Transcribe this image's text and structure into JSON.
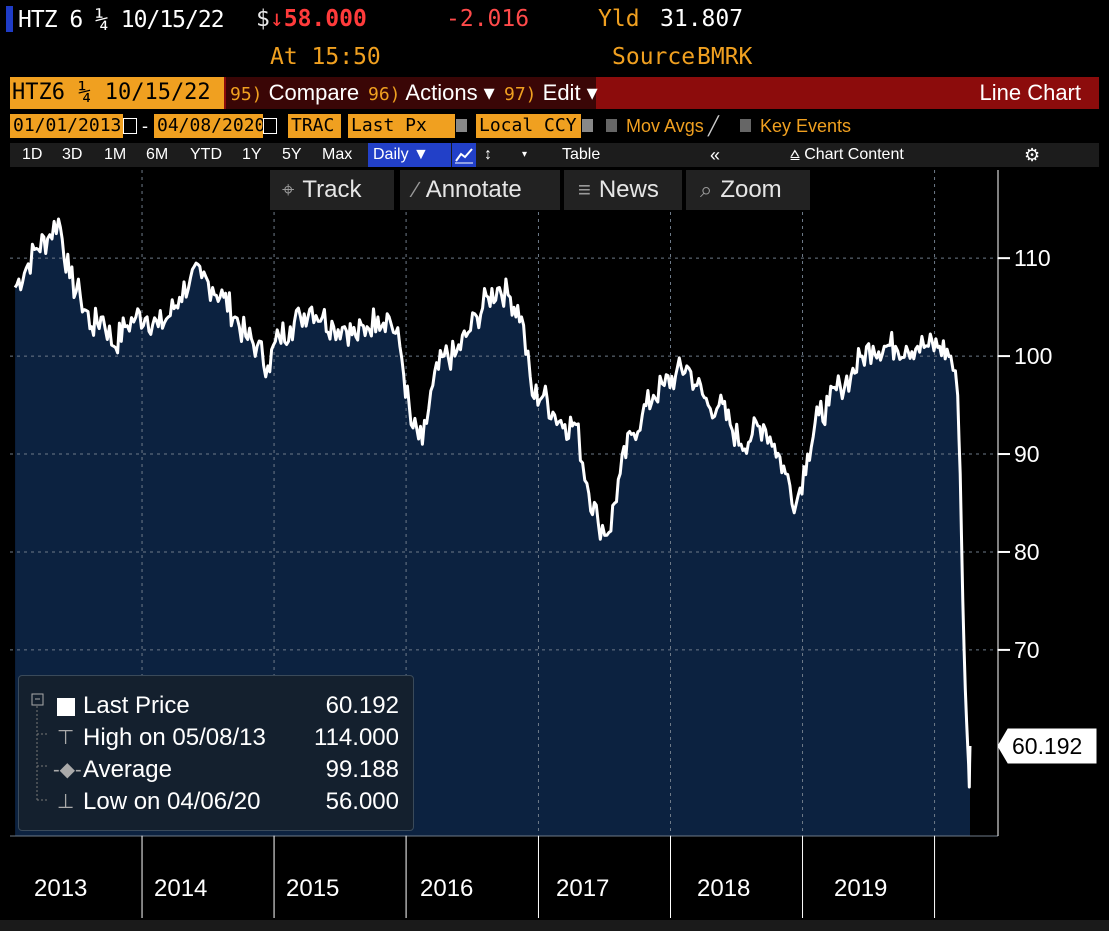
{
  "header": {
    "ticker": "HTZ 6 ¼ 10/15/22",
    "price_prefix": "$",
    "price_arrow": "↓",
    "price": "58.000",
    "change": "-2.016",
    "yld_label": "Yld",
    "yld": "31.807",
    "time": "At 15:50",
    "source_label": "Source",
    "source": "BMRK"
  },
  "toolbar": {
    "security": "HTZ6 ¼ 10/15/22 (",
    "compare_num": "95)",
    "compare": "Compare",
    "actions_num": "96)",
    "actions": "Actions ▾",
    "edit_num": "97)",
    "edit": "Edit ▾",
    "chart_title": "Line Chart"
  },
  "settings": {
    "start_date": "01/01/2013",
    "dash": "-",
    "end_date": "04/08/2020",
    "trac": "TRAC",
    "field": "Last Px",
    "currency": "Local CCY",
    "mov_avgs": "Mov Avgs",
    "key_events": "Key Events"
  },
  "periods": {
    "items": [
      "1D",
      "3D",
      "1M",
      "6M",
      "YTD",
      "1Y",
      "5Y",
      "Max"
    ],
    "daily": "Daily ▼",
    "table": "Table",
    "collapse": "«",
    "chart_content": "Chart Content",
    "gear": "⚙"
  },
  "tools": {
    "track": "Track",
    "annotate": "Annotate",
    "news": "News",
    "zoom": "Zoom"
  },
  "legend": {
    "last_label": "Last Price",
    "last_value": "60.192",
    "high_label": "High on 05/08/13",
    "high_value": "114.000",
    "avg_label": "Average",
    "avg_value": "99.188",
    "low_label": "Low on 04/06/20",
    "low_value": "56.000"
  },
  "colors": {
    "background": "#000000",
    "area_fill": "#0c2240",
    "line": "#ffffff",
    "accent_orange": "#f0a020",
    "toolbar_red": "#8c0c0c",
    "negative": "#ff3b3b"
  },
  "chart_data": {
    "type": "area",
    "title": "",
    "xlabel": "",
    "ylabel": "",
    "x_tick_labels": [
      "2013",
      "2014",
      "2015",
      "2016",
      "2017",
      "2018",
      "2019"
    ],
    "y_ticks": [
      70,
      80,
      90,
      100,
      110
    ],
    "ylim": [
      51,
      119
    ],
    "last_value_label": "60.192",
    "grid": true,
    "legend_position": "bottom-left",
    "series": [
      {
        "values": [
          {
            "x": "2013-01",
            "y": 107
          },
          {
            "x": "2013-02",
            "y": 109
          },
          {
            "x": "2013-03",
            "y": 111
          },
          {
            "x": "2013-04",
            "y": 112
          },
          {
            "x": "2013-05",
            "y": 114
          },
          {
            "x": "2013-06",
            "y": 108
          },
          {
            "x": "2013-07",
            "y": 106
          },
          {
            "x": "2013-08",
            "y": 103
          },
          {
            "x": "2013-09",
            "y": 104
          },
          {
            "x": "2013-10",
            "y": 101
          },
          {
            "x": "2013-11",
            "y": 103
          },
          {
            "x": "2013-12",
            "y": 104
          },
          {
            "x": "2014-01",
            "y": 104
          },
          {
            "x": "2014-02",
            "y": 103
          },
          {
            "x": "2014-03",
            "y": 104
          },
          {
            "x": "2014-04",
            "y": 106
          },
          {
            "x": "2014-05",
            "y": 108
          },
          {
            "x": "2014-06",
            "y": 108
          },
          {
            "x": "2014-07",
            "y": 107
          },
          {
            "x": "2014-08",
            "y": 106
          },
          {
            "x": "2014-09",
            "y": 104
          },
          {
            "x": "2014-10",
            "y": 102
          },
          {
            "x": "2014-11",
            "y": 101
          },
          {
            "x": "2014-12",
            "y": 99
          },
          {
            "x": "2015-01",
            "y": 102
          },
          {
            "x": "2015-02",
            "y": 103
          },
          {
            "x": "2015-03",
            "y": 104
          },
          {
            "x": "2015-04",
            "y": 105
          },
          {
            "x": "2015-05",
            "y": 104
          },
          {
            "x": "2015-06",
            "y": 103
          },
          {
            "x": "2015-07",
            "y": 103
          },
          {
            "x": "2015-08",
            "y": 102
          },
          {
            "x": "2015-09",
            "y": 103
          },
          {
            "x": "2015-10",
            "y": 104
          },
          {
            "x": "2015-11",
            "y": 104
          },
          {
            "x": "2015-12",
            "y": 101
          },
          {
            "x": "2016-01",
            "y": 93
          },
          {
            "x": "2016-02",
            "y": 91
          },
          {
            "x": "2016-03",
            "y": 97
          },
          {
            "x": "2016-04",
            "y": 100
          },
          {
            "x": "2016-05",
            "y": 100
          },
          {
            "x": "2016-06",
            "y": 102
          },
          {
            "x": "2016-07",
            "y": 104
          },
          {
            "x": "2016-08",
            "y": 106
          },
          {
            "x": "2016-09",
            "y": 107
          },
          {
            "x": "2016-10",
            "y": 106
          },
          {
            "x": "2016-11",
            "y": 104
          },
          {
            "x": "2016-12",
            "y": 96
          },
          {
            "x": "2017-01",
            "y": 96
          },
          {
            "x": "2017-02",
            "y": 94
          },
          {
            "x": "2017-03",
            "y": 93
          },
          {
            "x": "2017-04",
            "y": 93
          },
          {
            "x": "2017-05",
            "y": 87
          },
          {
            "x": "2017-06",
            "y": 83
          },
          {
            "x": "2017-07",
            "y": 82
          },
          {
            "x": "2017-08",
            "y": 88
          },
          {
            "x": "2017-09",
            "y": 92
          },
          {
            "x": "2017-10",
            "y": 94
          },
          {
            "x": "2017-11",
            "y": 96
          },
          {
            "x": "2017-12",
            "y": 97
          },
          {
            "x": "2018-01",
            "y": 98
          },
          {
            "x": "2018-02",
            "y": 99
          },
          {
            "x": "2018-03",
            "y": 97
          },
          {
            "x": "2018-04",
            "y": 95
          },
          {
            "x": "2018-05",
            "y": 95
          },
          {
            "x": "2018-06",
            "y": 93
          },
          {
            "x": "2018-07",
            "y": 91
          },
          {
            "x": "2018-08",
            "y": 92
          },
          {
            "x": "2018-09",
            "y": 93
          },
          {
            "x": "2018-10",
            "y": 91
          },
          {
            "x": "2018-11",
            "y": 88
          },
          {
            "x": "2018-12",
            "y": 85
          },
          {
            "x": "2019-01",
            "y": 90
          },
          {
            "x": "2019-02",
            "y": 94
          },
          {
            "x": "2019-03",
            "y": 95
          },
          {
            "x": "2019-04",
            "y": 97
          },
          {
            "x": "2019-05",
            "y": 98
          },
          {
            "x": "2019-06",
            "y": 100
          },
          {
            "x": "2019-07",
            "y": 101
          },
          {
            "x": "2019-08",
            "y": 101
          },
          {
            "x": "2019-09",
            "y": 101
          },
          {
            "x": "2019-10",
            "y": 101
          },
          {
            "x": "2019-11",
            "y": 101
          },
          {
            "x": "2019-12",
            "y": 101
          },
          {
            "x": "2020-01",
            "y": 101
          },
          {
            "x": "2020-02",
            "y": 100
          },
          {
            "x": "2020-03-05",
            "y": 96
          },
          {
            "x": "2020-03-12",
            "y": 88
          },
          {
            "x": "2020-03-19",
            "y": 75
          },
          {
            "x": "2020-03-26",
            "y": 66
          },
          {
            "x": "2020-04-02",
            "y": 60
          },
          {
            "x": "2020-04-06",
            "y": 56
          },
          {
            "x": "2020-04-08",
            "y": 60.192
          }
        ]
      }
    ]
  }
}
